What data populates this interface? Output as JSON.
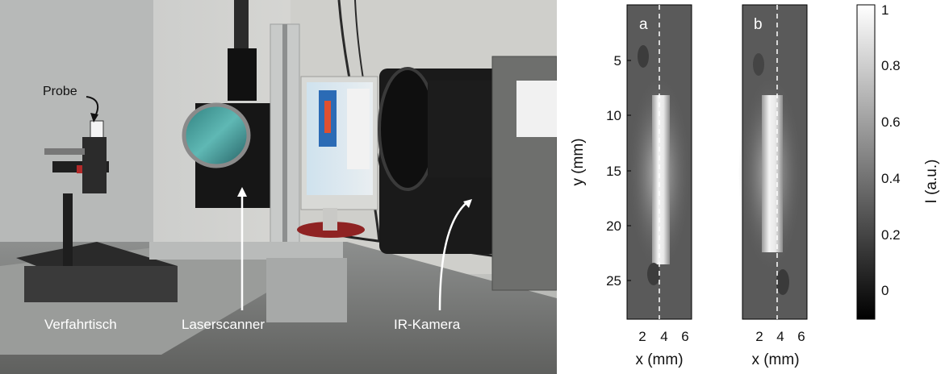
{
  "photo": {
    "labels": {
      "probe": "Probe",
      "stage": "Verfahrtisch",
      "scanner": "Laserscanner",
      "camera": "IR-Kamera"
    }
  },
  "panels": [
    {
      "tag": "a",
      "xlabel": "x (mm)",
      "xticks": [
        "2",
        "4",
        "6"
      ]
    },
    {
      "tag": "b",
      "xlabel": "x (mm)",
      "xticks": [
        "2",
        "4",
        "6"
      ]
    }
  ],
  "ylabel": "y (mm)",
  "yticks": [
    "5",
    "10",
    "15",
    "20",
    "25"
  ],
  "colorbar": {
    "label": "I (a.u.)",
    "ticks": [
      "1",
      "0.8",
      "0.6",
      "0.4",
      "0.2",
      "0"
    ],
    "range": [
      -0.1,
      1
    ]
  },
  "colors": {
    "colormap_low": "#000000",
    "colormap_high": "#ffffff",
    "background_gray": "#5a5a5a"
  }
}
